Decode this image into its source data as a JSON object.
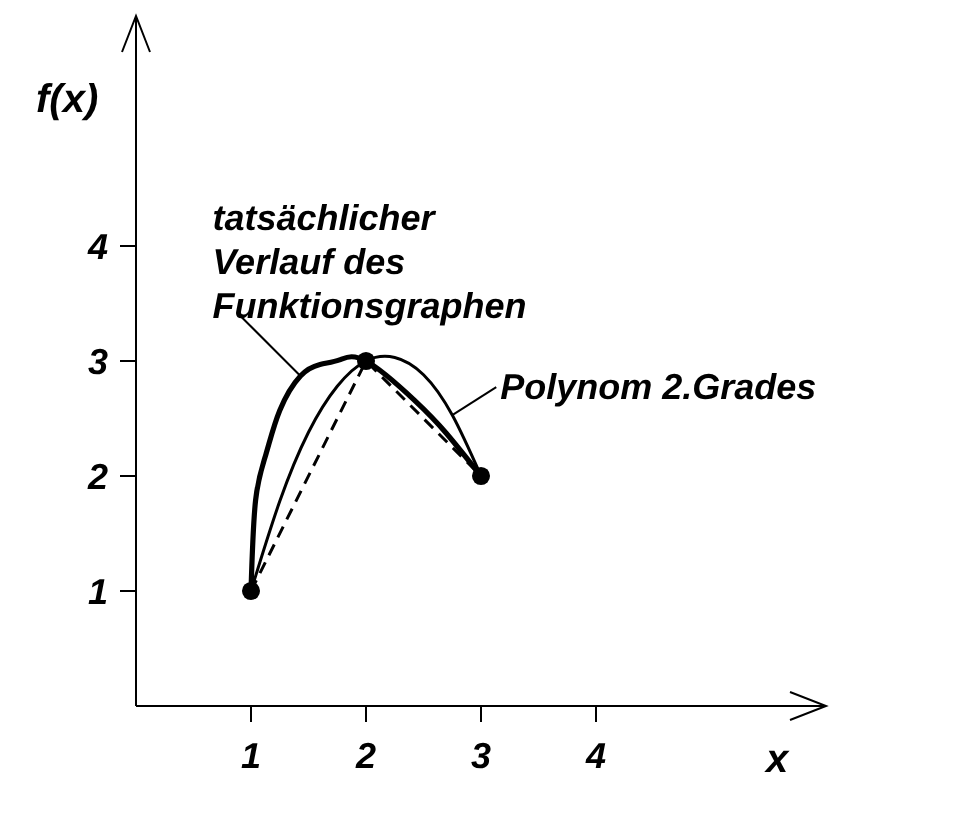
{
  "chart_data": {
    "type": "line",
    "xlabel": "x",
    "ylabel": "f(x)",
    "xlim": [
      0,
      6
    ],
    "ylim": [
      0,
      6
    ],
    "xticks": [
      1,
      2,
      3,
      4
    ],
    "yticks": [
      1,
      2,
      3,
      4
    ],
    "marker": "none",
    "series": [
      {
        "name": "tatsächlicher\nVerlauf des\nFunktionsgraphen",
        "color": "#000000",
        "line_style": "solid",
        "x": [
          1,
          1.04,
          1.13,
          1.25,
          1.43,
          1.6,
          1.77,
          2,
          2.42,
          2.7,
          3
        ],
        "values": [
          1,
          1.79,
          2.19,
          2.57,
          2.87,
          2.97,
          3.01,
          3,
          2.66,
          2.37,
          2
        ]
      },
      {
        "name": "Polynom 2.Grades",
        "color": "#000000",
        "line_style": "solid",
        "x": [
          1,
          1.25,
          1.5,
          1.75,
          2,
          2.25,
          2.5,
          2.75,
          3
        ],
        "values": [
          1,
          1.78,
          2.38,
          2.78,
          3,
          3.03,
          2.88,
          2.53,
          2
        ]
      },
      {
        "color": "#000000",
        "line_style": "dashed",
        "x": [
          1,
          2,
          3
        ],
        "values": [
          1,
          3,
          2
        ]
      },
      {
        "type": "scatter",
        "marker": "circle",
        "color": "#000000",
        "x": [
          1,
          2,
          3
        ],
        "values": [
          1,
          3,
          2
        ]
      }
    ]
  }
}
